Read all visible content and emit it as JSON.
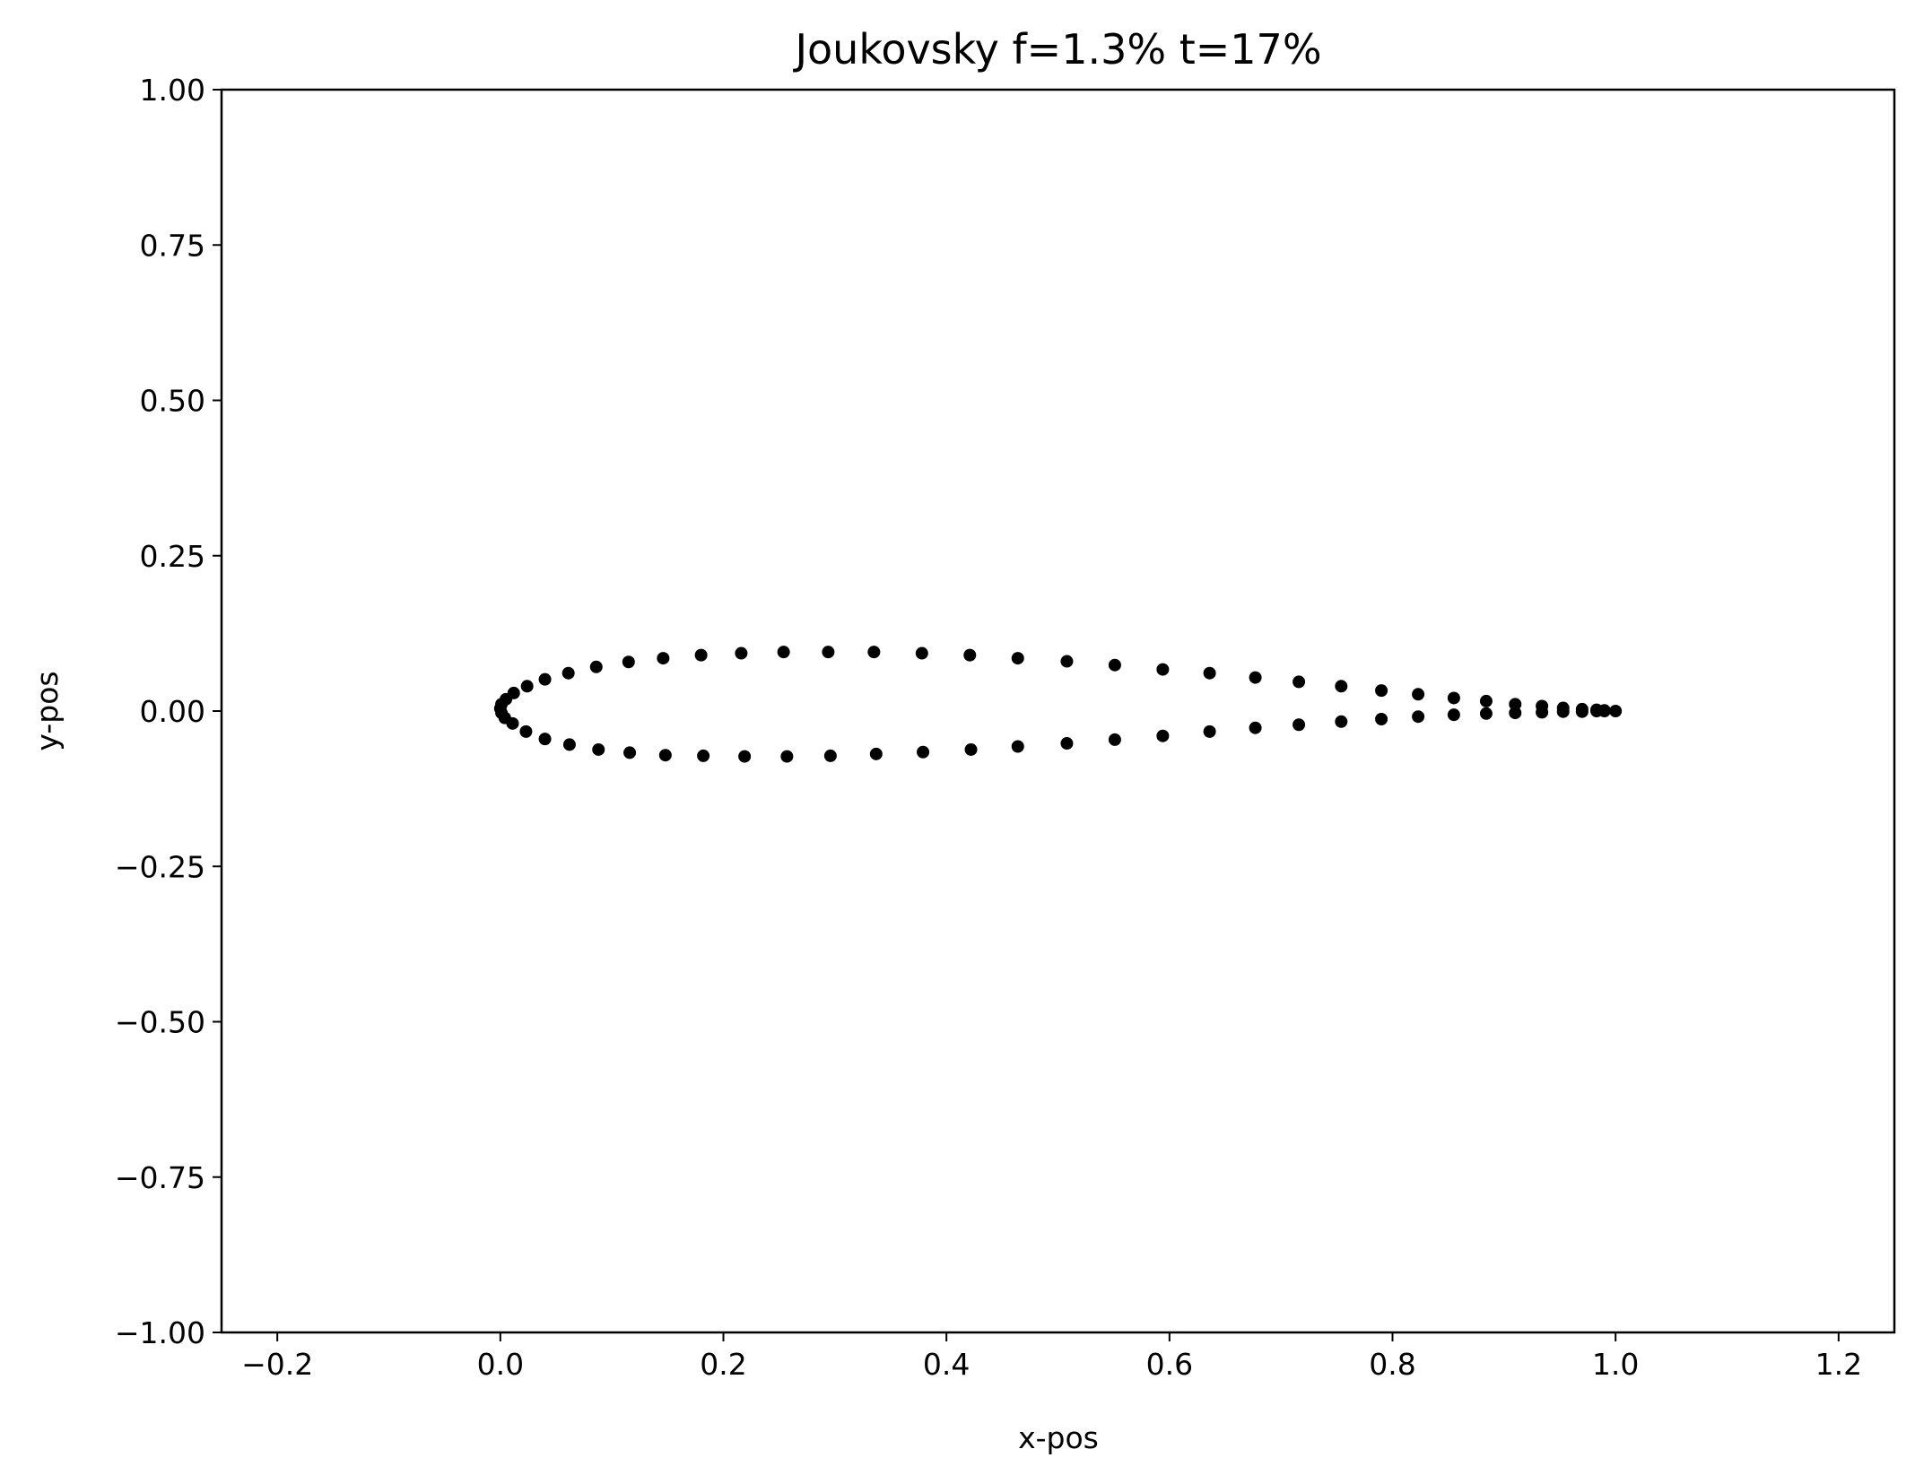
{
  "chart_data": {
    "type": "scatter",
    "title": "Joukovsky f=1.3% t=17%",
    "xlabel": "x-pos",
    "ylabel": "y-pos",
    "xlim": [
      -0.25,
      1.25
    ],
    "ylim": [
      -1.0,
      1.0
    ],
    "xticks": [
      -0.2,
      0.0,
      0.2,
      0.4,
      0.6,
      0.8,
      1.0,
      1.2
    ],
    "xtick_labels": [
      "−0.2",
      "0.0",
      "0.2",
      "0.4",
      "0.6",
      "0.8",
      "1.0",
      "1.2"
    ],
    "yticks": [
      1.0,
      0.75,
      0.5,
      0.25,
      0.0,
      -0.25,
      -0.5,
      -0.75,
      -1.0
    ],
    "ytick_labels": [
      "1.00",
      "0.75",
      "0.50",
      "0.25",
      "0.00",
      "−0.25",
      "−0.50",
      "−0.75",
      "−1.00"
    ],
    "grid": false,
    "marker_color": "#000000",
    "series": [
      {
        "points": [
          [
            1.0,
            0.0
          ],
          [
            0.99,
            0.001
          ],
          [
            0.983,
            0.002
          ],
          [
            0.97,
            0.003
          ],
          [
            0.953,
            0.005
          ],
          [
            0.934,
            0.008
          ],
          [
            0.91,
            0.011
          ],
          [
            0.884,
            0.016
          ],
          [
            0.855,
            0.021
          ],
          [
            0.823,
            0.027
          ],
          [
            0.79,
            0.033
          ],
          [
            0.754,
            0.04
          ],
          [
            0.716,
            0.047
          ],
          [
            0.677,
            0.054
          ],
          [
            0.636,
            0.061
          ],
          [
            0.594,
            0.067
          ],
          [
            0.551,
            0.074
          ],
          [
            0.508,
            0.08
          ],
          [
            0.464,
            0.085
          ],
          [
            0.421,
            0.09
          ],
          [
            0.378,
            0.093
          ],
          [
            0.335,
            0.095
          ],
          [
            0.294,
            0.095
          ],
          [
            0.254,
            0.095
          ],
          [
            0.216,
            0.093
          ],
          [
            0.18,
            0.09
          ],
          [
            0.146,
            0.085
          ],
          [
            0.115,
            0.079
          ],
          [
            0.086,
            0.071
          ],
          [
            0.061,
            0.061
          ],
          [
            0.04,
            0.051
          ],
          [
            0.024,
            0.04
          ],
          [
            0.012,
            0.029
          ],
          [
            0.005,
            0.019
          ],
          [
            0.001,
            0.011
          ],
          [
            0.0,
            0.004
          ],
          [
            0.001,
            -0.003
          ],
          [
            0.004,
            -0.011
          ],
          [
            0.011,
            -0.02
          ],
          [
            0.023,
            -0.033
          ],
          [
            0.04,
            -0.045
          ],
          [
            0.062,
            -0.054
          ],
          [
            0.088,
            -0.062
          ],
          [
            0.116,
            -0.067
          ],
          [
            0.148,
            -0.071
          ],
          [
            0.182,
            -0.072
          ],
          [
            0.219,
            -0.073
          ],
          [
            0.257,
            -0.073
          ],
          [
            0.296,
            -0.072
          ],
          [
            0.337,
            -0.069
          ],
          [
            0.379,
            -0.066
          ],
          [
            0.422,
            -0.062
          ],
          [
            0.464,
            -0.057
          ],
          [
            0.508,
            -0.052
          ],
          [
            0.551,
            -0.046
          ],
          [
            0.594,
            -0.04
          ],
          [
            0.636,
            -0.033
          ],
          [
            0.677,
            -0.027
          ],
          [
            0.716,
            -0.022
          ],
          [
            0.754,
            -0.017
          ],
          [
            0.79,
            -0.013
          ],
          [
            0.823,
            -0.009
          ],
          [
            0.855,
            -0.006
          ],
          [
            0.884,
            -0.004
          ],
          [
            0.91,
            -0.003
          ],
          [
            0.934,
            -0.002
          ],
          [
            0.953,
            -0.001
          ],
          [
            0.97,
            -0.001
          ],
          [
            0.983,
            0.0
          ],
          [
            0.99,
            0.0
          ]
        ]
      }
    ]
  }
}
